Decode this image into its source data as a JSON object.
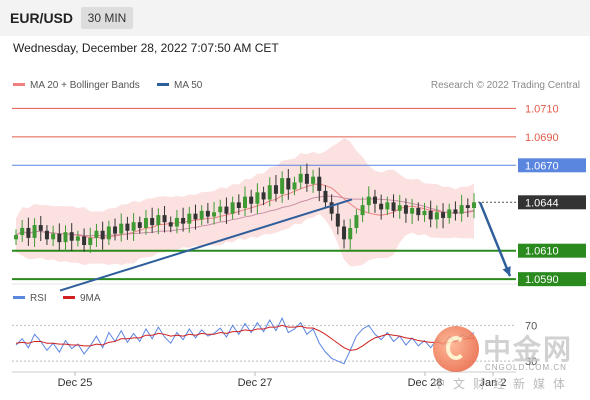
{
  "header": {
    "symbol": "EUR/USD",
    "timeframe": "30 MIN"
  },
  "timestamp": "Wednesday, December 28, 2022 7:07:50 AM CET",
  "credit": "Research © 2022 Trading Central",
  "legend": {
    "ma20": {
      "label": "MA 20 + Bollinger Bands",
      "color": "#f08080"
    },
    "ma50": {
      "label": "MA 50",
      "color": "#2f5f9a"
    },
    "rsi": {
      "label": "RSI",
      "color": "#5b86e0"
    },
    "ma9": {
      "label": "9MA",
      "color": "#d02020"
    }
  },
  "watermark": {
    "cn": "中金网",
    "url": "CNGOLD.COM.CN",
    "sub": "中文财经新媒体"
  },
  "colors": {
    "resistance": "#e05a4a",
    "pivot": "#5b86e0",
    "support": "#2a8a1e",
    "current": "#333333",
    "trend": "#2f5f9a"
  },
  "chart_data": {
    "type": "candlestick",
    "symbol": "EUR/USD",
    "interval": "30 MIN",
    "x_ticks": [
      "Dec 25",
      "Dec 27",
      "Dec 28",
      "Jan 2"
    ],
    "ylim": [
      1.0588,
      1.0718
    ],
    "levels": [
      {
        "label": "1.0710",
        "value": 1.071,
        "kind": "resistance"
      },
      {
        "label": "1.0690",
        "value": 1.069,
        "kind": "resistance"
      },
      {
        "label": "1.0670",
        "value": 1.067,
        "kind": "pivot"
      },
      {
        "label": "1.0644",
        "value": 1.0644,
        "kind": "current"
      },
      {
        "label": "1.0610",
        "value": 1.061,
        "kind": "support"
      },
      {
        "label": "1.0590",
        "value": 1.059,
        "kind": "support"
      }
    ],
    "closes": [
      1.0621,
      1.0626,
      1.0619,
      1.0628,
      1.0624,
      1.0618,
      1.0622,
      1.0616,
      1.0623,
      1.0617,
      1.062,
      1.0614,
      1.0619,
      1.0624,
      1.0618,
      1.0627,
      1.0622,
      1.0629,
      1.0624,
      1.063,
      1.0626,
      1.0633,
      1.0628,
      1.0635,
      1.063,
      1.0627,
      1.0633,
      1.0629,
      1.0636,
      1.0632,
      1.0638,
      1.0634,
      1.0637,
      1.0641,
      1.0636,
      1.0644,
      1.064,
      1.0648,
      1.0643,
      1.0651,
      1.0646,
      1.0656,
      1.065,
      1.0661,
      1.0653,
      1.0658,
      1.0664,
      1.0657,
      1.0662,
      1.0652,
      1.0644,
      1.0636,
      1.0627,
      1.0618,
      1.0626,
      1.0635,
      1.0642,
      1.0648,
      1.0643,
      1.0639,
      1.0644,
      1.0638,
      1.0642,
      1.0636,
      1.064,
      1.0635,
      1.0638,
      1.0632,
      1.0637,
      1.0633,
      1.0639,
      1.0636,
      1.0642,
      1.064,
      1.0644
    ],
    "trendline": {
      "from": 1.0582,
      "to": 1.0646
    },
    "projection": {
      "from": 1.0644,
      "to": 1.059
    },
    "rsi": {
      "series": [
        {
          "name": "RSI",
          "values": [
            48,
            55,
            45,
            60,
            52,
            42,
            50,
            40,
            53,
            44,
            49,
            38,
            47,
            58,
            45,
            62,
            52,
            64,
            51,
            61,
            52,
            66,
            55,
            68,
            57,
            50,
            62,
            54,
            66,
            56,
            65,
            58,
            61,
            67,
            57,
            70,
            60,
            72,
            62,
            73,
            63,
            76,
            64,
            78,
            62,
            66,
            73,
            60,
            66,
            50,
            40,
            33,
            30,
            27,
            42,
            58,
            66,
            70,
            60,
            54,
            62,
            52,
            58,
            48,
            56,
            47,
            53,
            45,
            54,
            48,
            58,
            51,
            60,
            56,
            62
          ]
        },
        {
          "name": "9MA",
          "values": [
            50,
            51,
            50,
            52,
            52,
            50,
            50,
            49,
            49,
            48,
            48,
            47,
            47,
            49,
            48,
            51,
            52,
            55,
            55,
            56,
            56,
            59,
            59,
            61,
            60,
            58,
            59,
            58,
            60,
            59,
            61,
            60,
            60,
            62,
            61,
            63,
            63,
            65,
            64,
            66,
            66,
            68,
            68,
            70,
            68,
            68,
            69,
            67,
            67,
            64,
            60,
            55,
            50,
            45,
            42,
            43,
            47,
            52,
            56,
            58,
            60,
            59,
            58,
            56,
            55,
            53,
            52,
            51,
            51,
            50,
            51,
            52,
            54,
            55,
            56
          ]
        }
      ],
      "ylim": [
        20,
        85
      ],
      "ticks": [
        "70",
        "30"
      ]
    }
  }
}
